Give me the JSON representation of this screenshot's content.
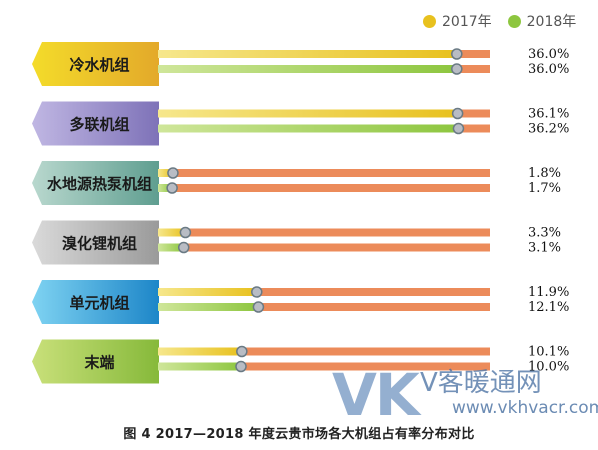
{
  "legend": [
    {
      "label": "2017年",
      "color": "#e8c11e"
    },
    {
      "label": "2018年",
      "color": "#8dc63f"
    }
  ],
  "caption": "图 4    2017—2018 年度云贵市场各大机组占有率分布对比",
  "watermark": {
    "logo": "VK",
    "name": "V客暖通网",
    "url": "www.vkhvacr.com"
  },
  "chart_data": {
    "type": "bar",
    "title": "2017—2018 年度云贵市场各大机组占有率分布对比",
    "categories": [
      "冷水机组",
      "多联机组",
      "水地源热泵机组",
      "溴化锂机组",
      "单元机组",
      "末端"
    ],
    "series": [
      {
        "name": "2017年",
        "values": [
          36.0,
          36.1,
          1.8,
          3.3,
          11.9,
          10.1
        ],
        "labels": [
          "36.0%",
          "36.1%",
          "1.8%",
          "3.3%",
          "11.9%",
          "10.1%"
        ],
        "color": "#e8c11e"
      },
      {
        "name": "2018年",
        "values": [
          36.0,
          36.2,
          1.7,
          3.1,
          12.1,
          10.0
        ],
        "labels": [
          "36.0%",
          "36.2%",
          "1.7%",
          "3.1%",
          "12.1%",
          "10.0%"
        ],
        "color": "#8dc63f"
      }
    ],
    "category_colors": [
      [
        "#f4dc2a",
        "#e3a92a"
      ],
      [
        "#c0b7e3",
        "#7e72b8"
      ],
      [
        "#b9d8ce",
        "#5f9e90"
      ],
      [
        "#dadada",
        "#9a9a9a"
      ],
      [
        "#7fd3f2",
        "#1d86c8"
      ],
      [
        "#c9e07a",
        "#86b93a"
      ]
    ],
    "track_color": "#ec8b5a",
    "xlim": [
      0,
      100
    ],
    "grid": false,
    "legend_position": "top-right"
  }
}
